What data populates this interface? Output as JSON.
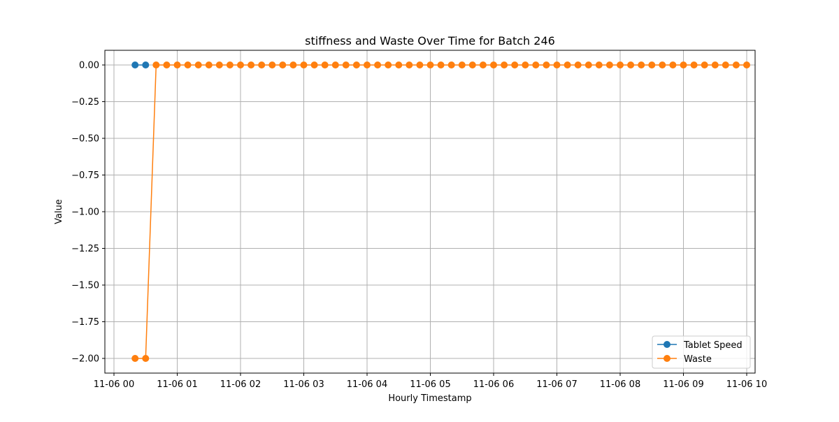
{
  "chart_data": {
    "type": "line",
    "title": "stiffness and Waste Over Time for Batch 246",
    "xlabel": "Hourly Timestamp",
    "ylabel": "Value",
    "x_ticks": [
      "11-06 00",
      "11-06 01",
      "11-06 02",
      "11-06 03",
      "11-06 04",
      "11-06 05",
      "11-06 06",
      "11-06 07",
      "11-06 08",
      "11-06 09",
      "11-06 10"
    ],
    "y_ticks": [
      "0.00",
      "−0.25",
      "−0.50",
      "−0.75",
      "−1.00",
      "−1.25",
      "−1.50",
      "−1.75",
      "−2.00"
    ],
    "y_tick_values": [
      0,
      -0.25,
      -0.5,
      -0.75,
      -1.0,
      -1.25,
      -1.5,
      -1.75,
      -2.0
    ],
    "xlim": [
      "2024-11-06 00:00",
      "2024-11-06 10:00"
    ],
    "ylim": [
      -2.1,
      0.1
    ],
    "x_time_step_minutes": 10,
    "grid": true,
    "legend_position": "lower right",
    "series": [
      {
        "name": "Tablet Speed",
        "color": "#1f77b4",
        "start": "2024-11-06 00:20",
        "values": [
          0,
          0
        ]
      },
      {
        "name": "Waste",
        "color": "#ff7f0e",
        "start": "2024-11-06 00:20",
        "values": [
          -2,
          -2,
          0,
          0,
          0,
          0,
          0,
          0,
          0,
          0,
          0,
          0,
          0,
          0,
          0,
          0,
          0,
          0,
          0,
          0,
          0,
          0,
          0,
          0,
          0,
          0,
          0,
          0,
          0,
          0,
          0,
          0,
          0,
          0,
          0,
          0,
          0,
          0,
          0,
          0,
          0,
          0,
          0,
          0,
          0,
          0,
          0,
          0,
          0,
          0,
          0,
          0,
          0,
          0,
          0,
          0,
          0,
          0,
          0
        ]
      }
    ]
  }
}
